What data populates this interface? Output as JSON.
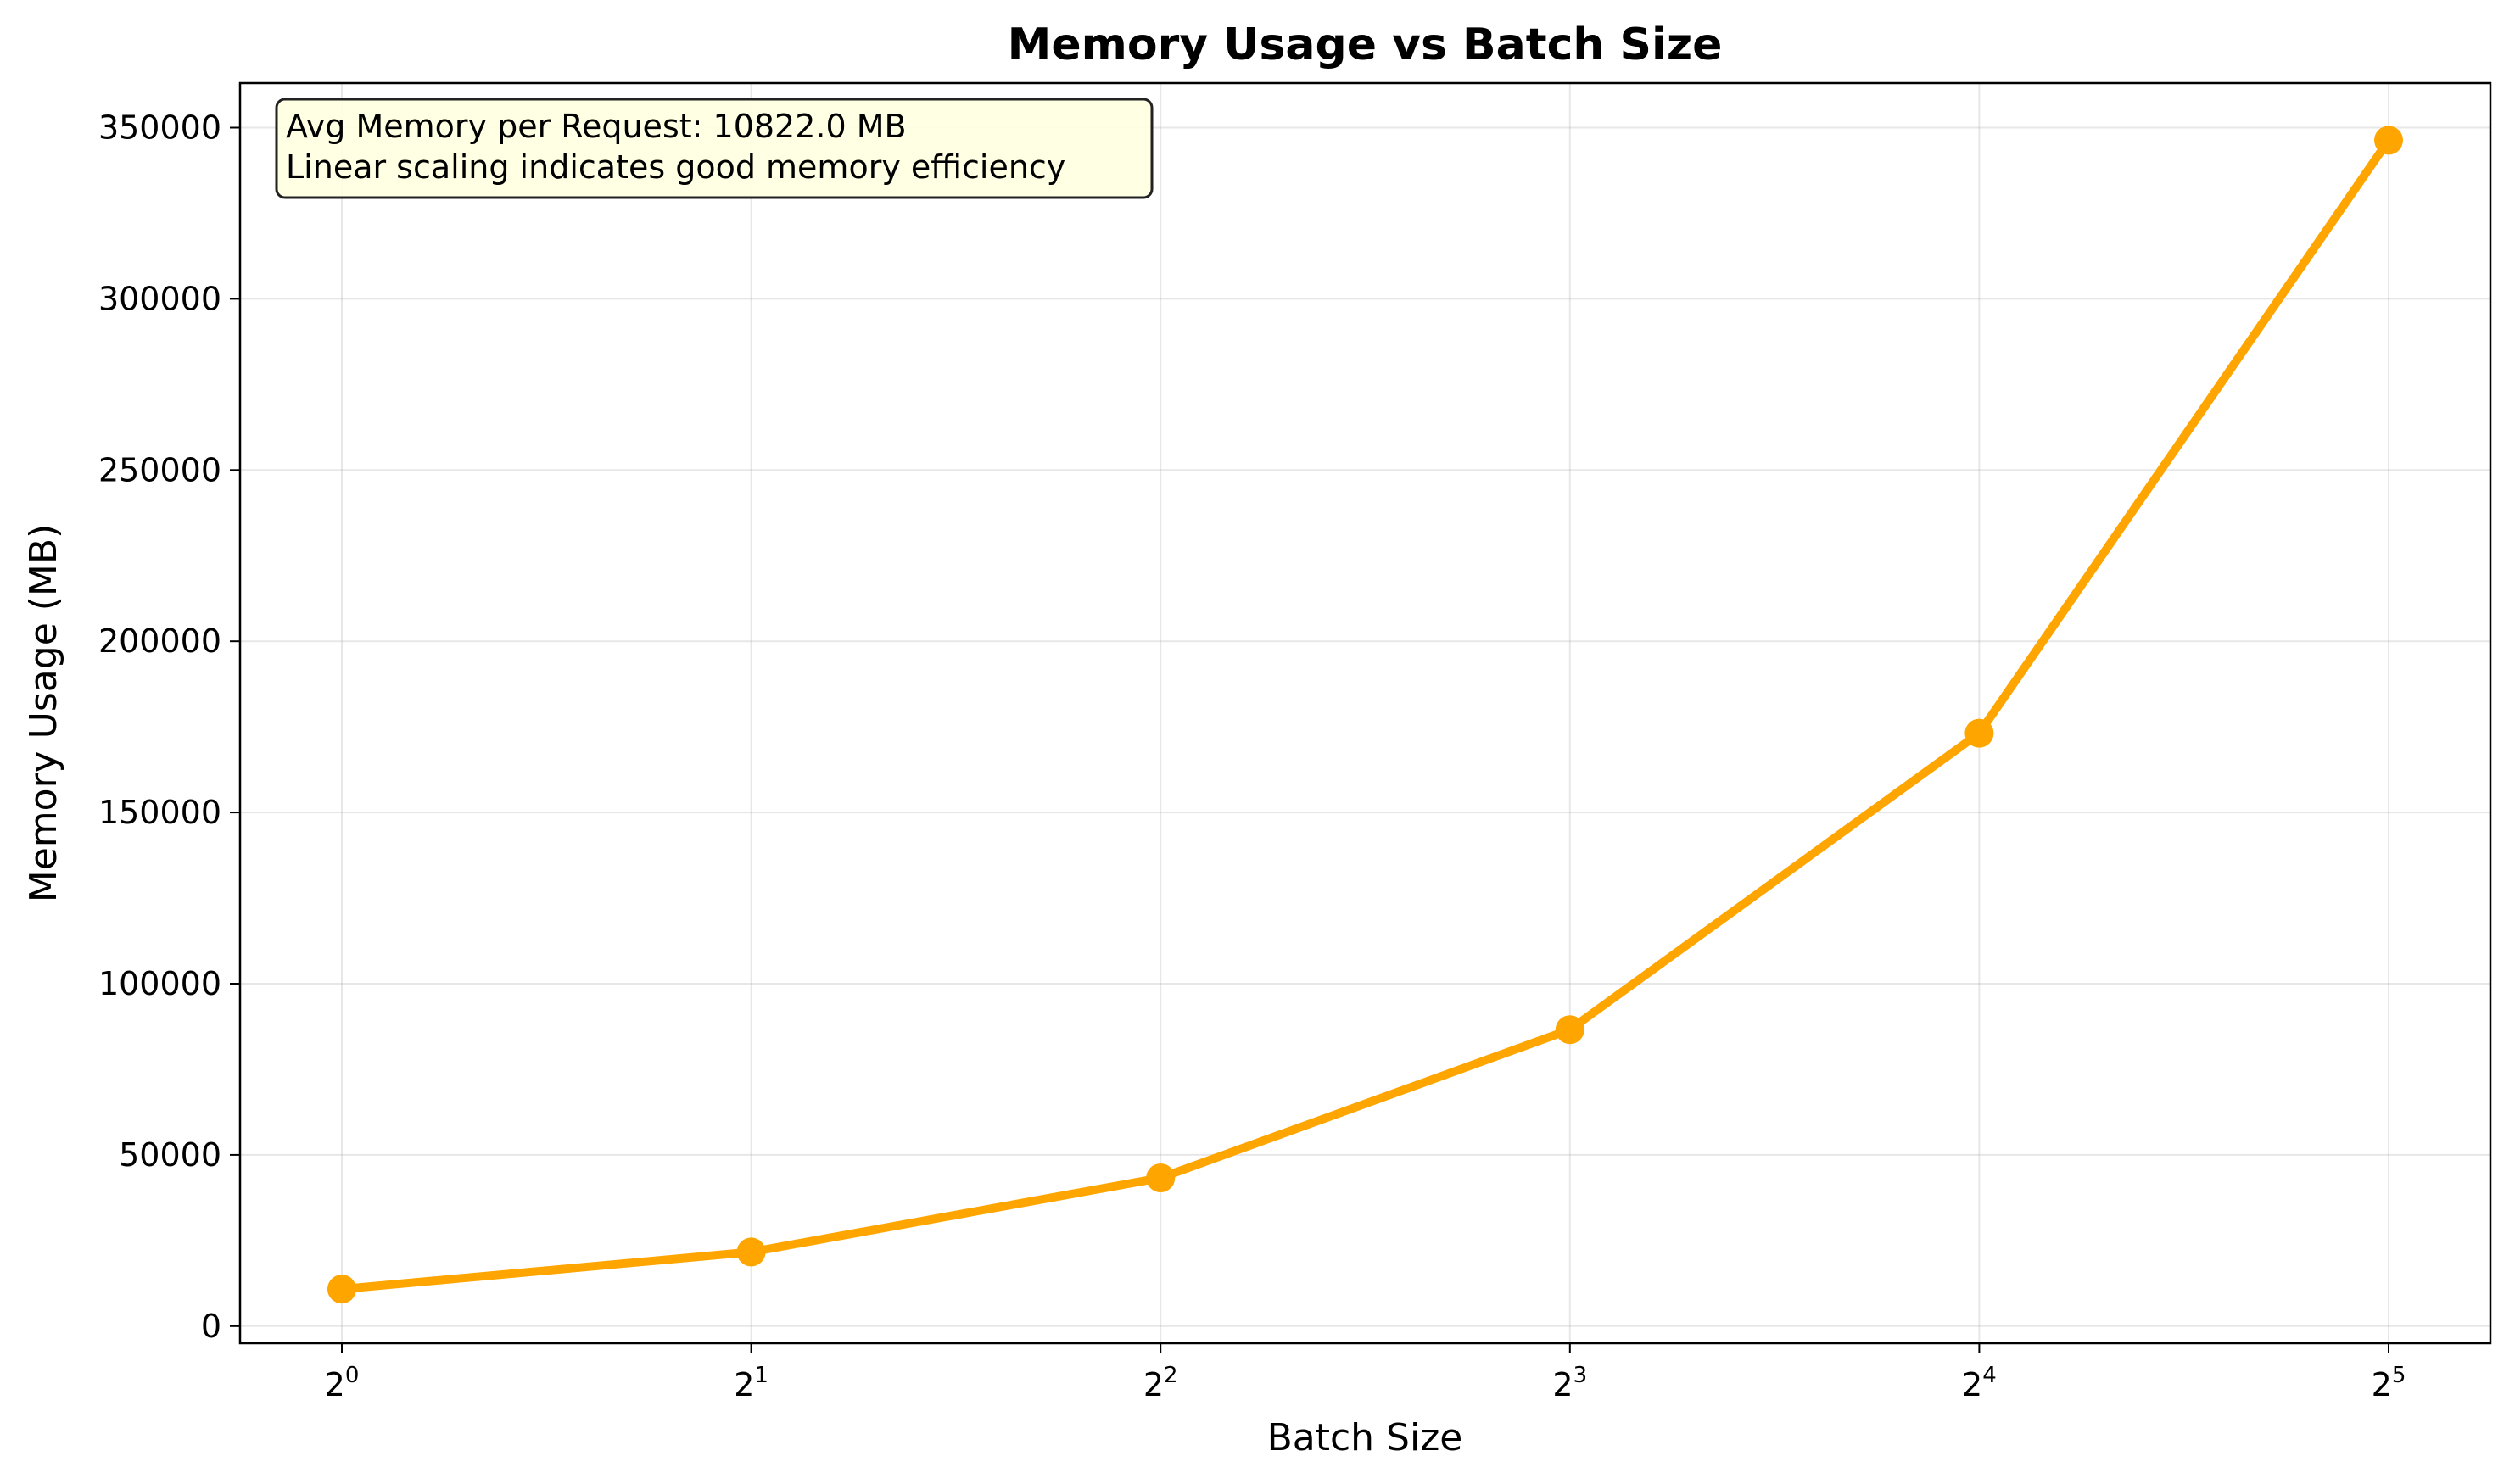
{
  "chart_data": {
    "type": "line",
    "title": "Memory Usage vs Batch Size",
    "xlabel": "Batch Size",
    "ylabel": "Memory Usage (MB)",
    "xscale": "log2",
    "x": [
      1,
      2,
      4,
      8,
      16,
      32
    ],
    "x_ticks": [
      {
        "base": "2",
        "exp": "0"
      },
      {
        "base": "2",
        "exp": "1"
      },
      {
        "base": "2",
        "exp": "2"
      },
      {
        "base": "2",
        "exp": "3"
      },
      {
        "base": "2",
        "exp": "4"
      },
      {
        "base": "2",
        "exp": "5"
      }
    ],
    "y_ticks": [
      "0",
      "50000",
      "100000",
      "150000",
      "200000",
      "250000",
      "300000",
      "350000"
    ],
    "ylim": [
      -5000,
      363000
    ],
    "grid": true,
    "series": [
      {
        "values": [
          10822,
          21644,
          43288,
          86576,
          173152,
          346304
        ],
        "color": "#ffa500",
        "marker": "circle"
      }
    ],
    "annotation": {
      "lines": [
        "Avg Memory per Request: 10822.0 MB",
        "Linear scaling indicates good memory efficiency"
      ],
      "position": "top-left"
    }
  }
}
